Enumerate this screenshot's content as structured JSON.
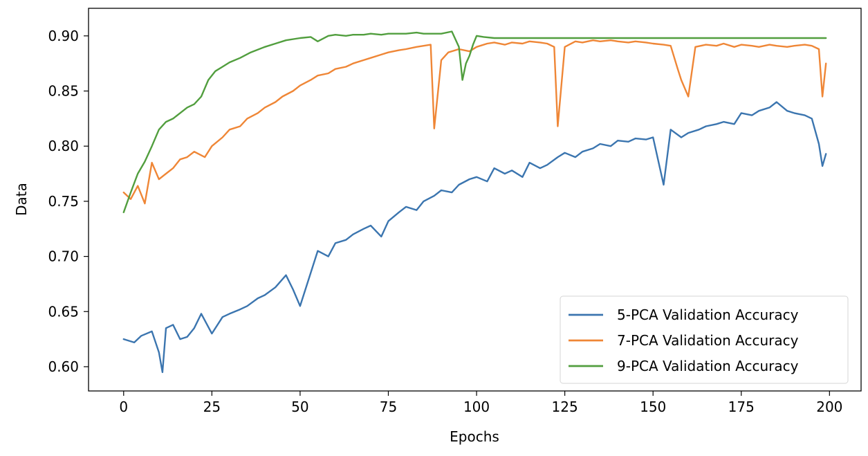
{
  "chart_data": {
    "type": "line",
    "xlabel": "Epochs",
    "ylabel": "Data",
    "xlim": [
      -9.95,
      208.95
    ],
    "ylim": [
      0.578,
      0.925
    ],
    "xticks": [
      0,
      25,
      50,
      75,
      100,
      125,
      150,
      175,
      200
    ],
    "yticks": [
      0.6,
      0.65,
      0.7,
      0.75,
      0.8,
      0.85,
      0.9
    ],
    "xtick_labels": [
      "0",
      "25",
      "50",
      "75",
      "100",
      "125",
      "150",
      "175",
      "200"
    ],
    "ytick_labels": [
      "0.60",
      "0.65",
      "0.70",
      "0.75",
      "0.80",
      "0.85",
      "0.90"
    ],
    "grid": false,
    "legend_position": "lower-right",
    "series": [
      {
        "name": "5-PCA Validation Accuracy",
        "color": "#3b75af",
        "x": [
          0,
          3,
          5,
          8,
          10,
          11,
          12,
          14,
          16,
          18,
          20,
          22,
          25,
          28,
          30,
          33,
          35,
          38,
          40,
          43,
          46,
          48,
          50,
          53,
          55,
          58,
          60,
          63,
          65,
          68,
          70,
          73,
          75,
          78,
          80,
          83,
          85,
          88,
          90,
          93,
          95,
          98,
          100,
          103,
          105,
          108,
          110,
          113,
          115,
          118,
          120,
          123,
          125,
          128,
          130,
          133,
          135,
          138,
          140,
          143,
          145,
          148,
          150,
          153,
          155,
          158,
          160,
          163,
          165,
          168,
          170,
          173,
          175,
          178,
          180,
          183,
          185,
          188,
          190,
          193,
          195,
          197,
          198,
          199
        ],
        "y": [
          0.625,
          0.622,
          0.628,
          0.632,
          0.613,
          0.595,
          0.635,
          0.638,
          0.625,
          0.627,
          0.635,
          0.648,
          0.63,
          0.645,
          0.648,
          0.652,
          0.655,
          0.662,
          0.665,
          0.672,
          0.683,
          0.67,
          0.655,
          0.685,
          0.705,
          0.7,
          0.712,
          0.715,
          0.72,
          0.725,
          0.728,
          0.718,
          0.732,
          0.74,
          0.745,
          0.742,
          0.75,
          0.755,
          0.76,
          0.758,
          0.765,
          0.77,
          0.772,
          0.768,
          0.78,
          0.775,
          0.778,
          0.772,
          0.785,
          0.78,
          0.783,
          0.79,
          0.794,
          0.79,
          0.795,
          0.798,
          0.802,
          0.8,
          0.805,
          0.804,
          0.807,
          0.806,
          0.808,
          0.765,
          0.815,
          0.808,
          0.812,
          0.815,
          0.818,
          0.82,
          0.822,
          0.82,
          0.83,
          0.828,
          0.832,
          0.835,
          0.84,
          0.832,
          0.83,
          0.828,
          0.825,
          0.802,
          0.782,
          0.793
        ]
      },
      {
        "name": "7-PCA Validation Accuracy",
        "color": "#ef8636",
        "x": [
          0,
          2,
          4,
          6,
          8,
          10,
          12,
          14,
          16,
          18,
          20,
          23,
          25,
          28,
          30,
          33,
          35,
          38,
          40,
          43,
          45,
          48,
          50,
          53,
          55,
          58,
          60,
          63,
          65,
          68,
          70,
          73,
          75,
          78,
          80,
          83,
          85,
          87,
          88,
          90,
          92,
          95,
          98,
          100,
          103,
          105,
          108,
          110,
          113,
          115,
          118,
          120,
          122,
          123,
          125,
          128,
          130,
          133,
          135,
          138,
          140,
          143,
          145,
          148,
          150,
          153,
          155,
          157,
          158,
          160,
          162,
          165,
          168,
          170,
          173,
          175,
          178,
          180,
          183,
          185,
          188,
          190,
          193,
          195,
          197,
          198,
          199
        ],
        "y": [
          0.758,
          0.752,
          0.764,
          0.748,
          0.785,
          0.77,
          0.775,
          0.78,
          0.788,
          0.79,
          0.795,
          0.79,
          0.8,
          0.808,
          0.815,
          0.818,
          0.825,
          0.83,
          0.835,
          0.84,
          0.845,
          0.85,
          0.855,
          0.86,
          0.864,
          0.866,
          0.87,
          0.872,
          0.875,
          0.878,
          0.88,
          0.883,
          0.885,
          0.887,
          0.888,
          0.89,
          0.891,
          0.892,
          0.816,
          0.878,
          0.885,
          0.888,
          0.886,
          0.89,
          0.893,
          0.894,
          0.892,
          0.894,
          0.893,
          0.895,
          0.894,
          0.893,
          0.89,
          0.818,
          0.89,
          0.895,
          0.894,
          0.896,
          0.895,
          0.896,
          0.895,
          0.894,
          0.895,
          0.894,
          0.893,
          0.892,
          0.891,
          0.87,
          0.86,
          0.845,
          0.89,
          0.892,
          0.891,
          0.893,
          0.89,
          0.892,
          0.891,
          0.89,
          0.892,
          0.891,
          0.89,
          0.891,
          0.892,
          0.891,
          0.888,
          0.845,
          0.875
        ]
      },
      {
        "name": "9-PCA Validation Accuracy",
        "color": "#519e3e",
        "x": [
          0,
          2,
          4,
          6,
          8,
          10,
          12,
          14,
          16,
          18,
          20,
          22,
          24,
          26,
          28,
          30,
          33,
          36,
          40,
          43,
          46,
          50,
          53,
          55,
          58,
          60,
          63,
          65,
          68,
          70,
          73,
          75,
          78,
          80,
          83,
          85,
          88,
          90,
          93,
          95,
          96,
          97,
          98,
          99,
          100,
          102,
          105,
          110,
          120,
          130,
          140,
          150,
          160,
          170,
          180,
          190,
          199
        ],
        "y": [
          0.74,
          0.758,
          0.775,
          0.786,
          0.8,
          0.815,
          0.822,
          0.825,
          0.83,
          0.835,
          0.838,
          0.845,
          0.86,
          0.868,
          0.872,
          0.876,
          0.88,
          0.885,
          0.89,
          0.893,
          0.896,
          0.898,
          0.899,
          0.895,
          0.9,
          0.901,
          0.9,
          0.901,
          0.901,
          0.902,
          0.901,
          0.902,
          0.902,
          0.902,
          0.903,
          0.902,
          0.902,
          0.902,
          0.904,
          0.89,
          0.86,
          0.875,
          0.882,
          0.892,
          0.9,
          0.899,
          0.898,
          0.898,
          0.898,
          0.898,
          0.898,
          0.898,
          0.898,
          0.898,
          0.898,
          0.898,
          0.898
        ]
      }
    ]
  }
}
